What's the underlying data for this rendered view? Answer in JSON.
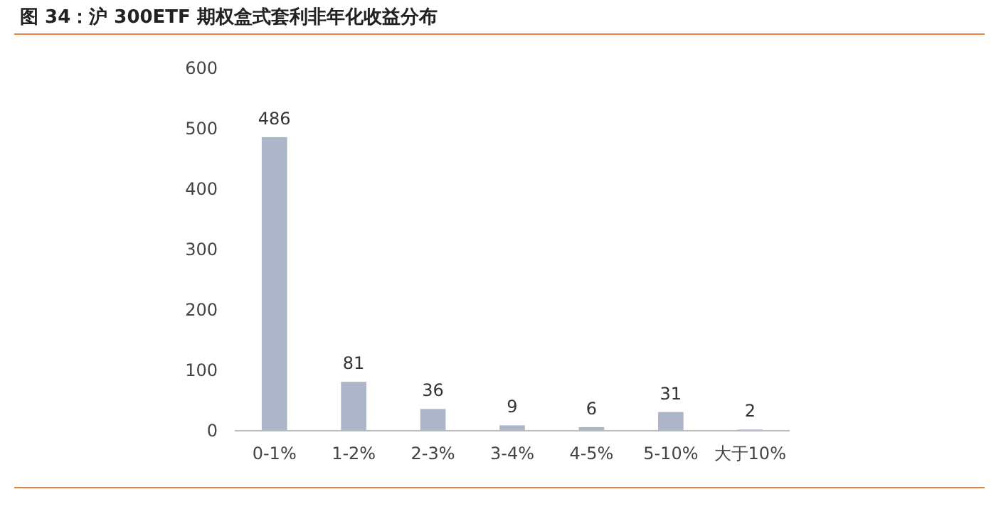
{
  "chart_data": {
    "type": "bar",
    "title": "图 34：沪 300ETF 期权盒式套利非年化收益分布",
    "categories": [
      "0-1%",
      "1-2%",
      "2-3%",
      "3-4%",
      "4-5%",
      "5-10%",
      "大于10%"
    ],
    "values": [
      486,
      81,
      36,
      9,
      6,
      31,
      2
    ],
    "color": "#adb6c8",
    "ylim": [
      0,
      600
    ],
    "yticks": [
      0,
      100,
      200,
      300,
      400,
      500,
      600
    ],
    "data_labels": true
  }
}
